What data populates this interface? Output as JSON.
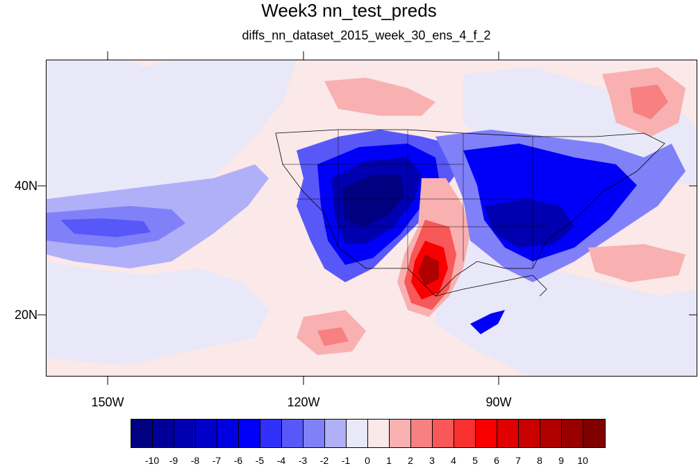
{
  "title": "Week3 nn_test_preds",
  "subtitle": "diffs_nn_dataset_2015_week_30_ens_4_f_2",
  "axes": {
    "y_labels": [
      "40N",
      "20N"
    ],
    "x_labels": [
      "150W",
      "120W",
      "90W"
    ]
  },
  "colorbar": {
    "colors": [
      "#000080",
      "#000098",
      "#0000b0",
      "#0000c8",
      "#0000e0",
      "#0000f8",
      "#3030f8",
      "#5858f8",
      "#8080f8",
      "#b0b0f8",
      "#e8e8f8",
      "#fbe8e8",
      "#f8b0b0",
      "#f88080",
      "#f85858",
      "#f83030",
      "#f80000",
      "#e00000",
      "#c80000",
      "#b00000",
      "#980000",
      "#800000"
    ],
    "labels": [
      "-10",
      "-9",
      "-8",
      "-7",
      "-6",
      "-5",
      "-4",
      "-3",
      "-2",
      "-1",
      "0",
      "1",
      "2",
      "3",
      "4",
      "5",
      "6",
      "7",
      "8",
      "9",
      "10"
    ]
  }
}
